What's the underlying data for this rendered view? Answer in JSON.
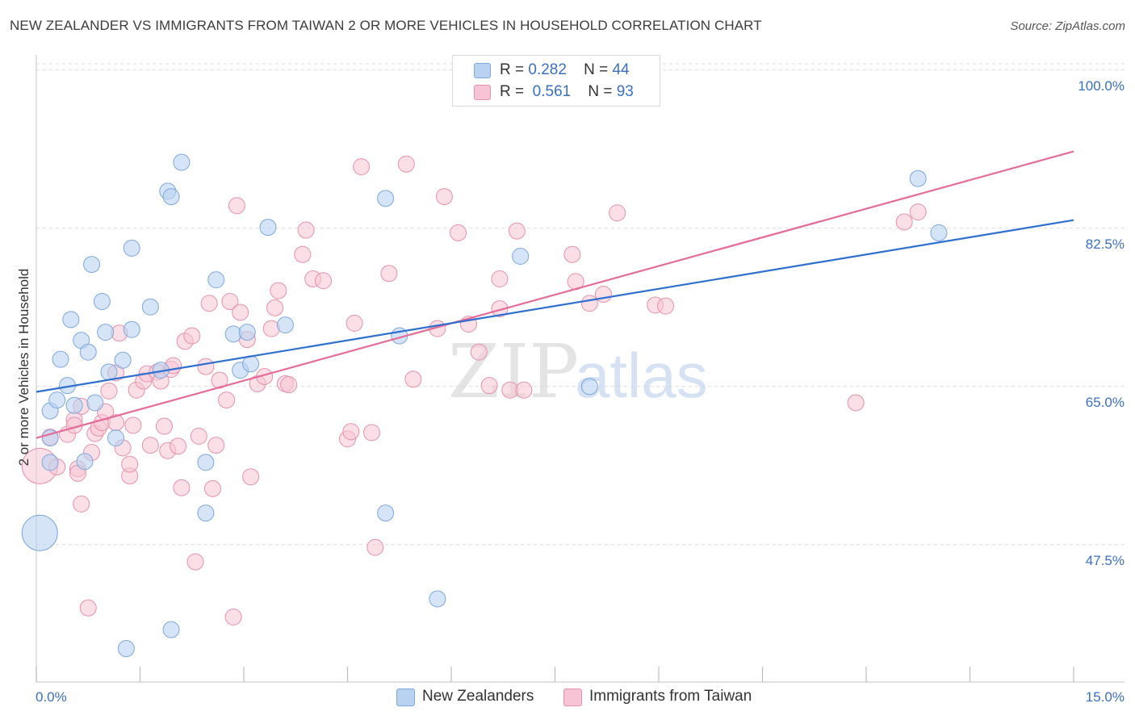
{
  "title": "NEW ZEALANDER VS IMMIGRANTS FROM TAIWAN 2 OR MORE VEHICLES IN HOUSEHOLD CORRELATION CHART",
  "source": "Source: ZipAtlas.com",
  "watermark": {
    "zip": "ZIP",
    "atlas": "atlas"
  },
  "legend": {
    "r_label": "R =",
    "n_label": "N =",
    "series": [
      {
        "r": "0.282",
        "n": "44"
      },
      {
        "r": "0.561",
        "n": "93"
      }
    ]
  },
  "colors": {
    "blue_fill": "#b9d2f0",
    "blue_stroke": "#7ea7dd",
    "blue_line": "#2f6fcf",
    "pink_fill": "#f6c4d4",
    "pink_stroke": "#e890ad",
    "pink_line": "#e56b98",
    "axis_text": "#3a6fc4"
  },
  "chart_data": {
    "type": "scatter",
    "title": "NEW ZEALANDER VS IMMIGRANTS FROM TAIWAN 2 OR MORE VEHICLES IN HOUSEHOLD CORRELATION CHART",
    "xlabel": "",
    "ylabel": "2 or more Vehicles in Household",
    "xlim": [
      0,
      15
    ],
    "ylim": [
      32.3,
      101.5
    ],
    "x_tick_labels": [
      "0.0%",
      "15.0%"
    ],
    "y_ticks": [
      47.5,
      65.0,
      82.5,
      100.0
    ],
    "y_tick_labels": [
      "47.5%",
      "65.0%",
      "82.5%",
      "100.0%"
    ],
    "legend_position": "top-center",
    "series": [
      {
        "name": "New Zealanders",
        "trend": {
          "x": [
            0,
            15
          ],
          "y": [
            64.4,
            83.4
          ]
        },
        "points": [
          [
            0.05,
            48.8,
            22
          ],
          [
            0.2,
            56.6,
            10
          ],
          [
            0.2,
            59.3,
            10
          ],
          [
            0.2,
            62.3,
            10
          ],
          [
            0.3,
            63.5,
            10
          ],
          [
            0.35,
            68.0,
            10
          ],
          [
            0.45,
            65.1,
            10
          ],
          [
            0.5,
            72.4,
            10
          ],
          [
            0.55,
            62.9,
            10
          ],
          [
            0.65,
            70.1,
            10
          ],
          [
            0.7,
            56.7,
            10
          ],
          [
            0.75,
            68.8,
            10
          ],
          [
            0.8,
            78.5,
            10
          ],
          [
            0.85,
            63.2,
            10
          ],
          [
            0.95,
            74.4,
            10
          ],
          [
            1.0,
            71.0,
            10
          ],
          [
            1.05,
            66.6,
            10
          ],
          [
            1.15,
            59.3,
            10
          ],
          [
            1.25,
            67.9,
            10
          ],
          [
            1.38,
            71.3,
            10
          ],
          [
            1.38,
            80.3,
            10
          ],
          [
            1.65,
            73.8,
            10
          ],
          [
            1.8,
            66.8,
            10
          ],
          [
            1.9,
            86.6,
            10
          ],
          [
            1.95,
            86.0,
            10
          ],
          [
            1.95,
            38.1,
            10
          ],
          [
            2.1,
            89.8,
            10
          ],
          [
            2.45,
            56.6,
            10
          ],
          [
            2.45,
            51.0,
            10
          ],
          [
            2.6,
            76.8,
            10
          ],
          [
            2.85,
            70.8,
            10
          ],
          [
            2.95,
            66.8,
            10
          ],
          [
            3.1,
            67.5,
            10
          ],
          [
            3.05,
            71.0,
            10
          ],
          [
            3.35,
            82.6,
            10
          ],
          [
            3.6,
            71.8,
            10
          ],
          [
            1.3,
            36.0,
            10
          ],
          [
            5.05,
            85.8,
            10
          ],
          [
            5.05,
            51.0,
            10
          ],
          [
            5.25,
            70.6,
            10
          ],
          [
            5.8,
            41.5,
            10
          ],
          [
            7.0,
            79.4,
            10
          ],
          [
            8.0,
            65.0,
            10
          ],
          [
            12.75,
            88.0,
            10
          ],
          [
            13.05,
            82.0,
            10
          ]
        ]
      },
      {
        "name": "Immigrants from Taiwan",
        "trend": {
          "x": [
            0,
            15
          ],
          "y": [
            59.3,
            91.0
          ]
        },
        "points": [
          [
            0.05,
            56.2,
            22
          ],
          [
            0.3,
            56.1,
            10
          ],
          [
            0.2,
            59.4,
            10
          ],
          [
            0.45,
            59.7,
            10
          ],
          [
            0.55,
            61.3,
            10
          ],
          [
            0.55,
            60.7,
            10
          ],
          [
            0.6,
            55.9,
            10
          ],
          [
            0.6,
            55.4,
            10
          ],
          [
            0.65,
            62.8,
            10
          ],
          [
            0.65,
            52.0,
            10
          ],
          [
            0.75,
            40.5,
            10
          ],
          [
            0.8,
            57.7,
            10
          ],
          [
            0.85,
            59.8,
            10
          ],
          [
            0.9,
            60.4,
            10
          ],
          [
            0.95,
            61.0,
            10
          ],
          [
            1.0,
            62.2,
            10
          ],
          [
            1.05,
            64.5,
            10
          ],
          [
            1.15,
            61.0,
            10
          ],
          [
            1.15,
            66.5,
            10
          ],
          [
            1.2,
            70.9,
            10
          ],
          [
            1.25,
            58.2,
            10
          ],
          [
            1.35,
            55.1,
            10
          ],
          [
            1.35,
            56.4,
            10
          ],
          [
            1.4,
            60.7,
            10
          ],
          [
            1.45,
            64.6,
            10
          ],
          [
            1.55,
            65.6,
            10
          ],
          [
            1.6,
            66.4,
            10
          ],
          [
            1.65,
            58.5,
            10
          ],
          [
            1.75,
            66.6,
            10
          ],
          [
            1.8,
            65.6,
            10
          ],
          [
            1.85,
            60.6,
            10
          ],
          [
            1.9,
            57.9,
            10
          ],
          [
            1.95,
            66.9,
            10
          ],
          [
            1.98,
            67.3,
            10
          ],
          [
            2.05,
            58.4,
            10
          ],
          [
            2.1,
            53.8,
            10
          ],
          [
            2.15,
            70.0,
            10
          ],
          [
            2.25,
            70.6,
            10
          ],
          [
            2.3,
            45.6,
            10
          ],
          [
            2.35,
            59.5,
            10
          ],
          [
            2.45,
            67.2,
            10
          ],
          [
            2.5,
            74.2,
            10
          ],
          [
            2.55,
            53.7,
            10
          ],
          [
            2.6,
            58.5,
            10
          ],
          [
            2.65,
            65.7,
            10
          ],
          [
            2.75,
            63.5,
            10
          ],
          [
            2.8,
            74.4,
            10
          ],
          [
            2.85,
            39.5,
            10
          ],
          [
            2.9,
            85.0,
            10
          ],
          [
            2.95,
            73.2,
            10
          ],
          [
            3.05,
            70.2,
            10
          ],
          [
            3.1,
            55.0,
            10
          ],
          [
            3.2,
            65.3,
            10
          ],
          [
            3.3,
            66.1,
            10
          ],
          [
            3.4,
            71.4,
            10
          ],
          [
            3.45,
            73.7,
            10
          ],
          [
            3.5,
            75.6,
            10
          ],
          [
            3.6,
            65.3,
            10
          ],
          [
            3.65,
            65.2,
            10
          ],
          [
            3.85,
            79.6,
            10
          ],
          [
            3.9,
            82.3,
            10
          ],
          [
            4.0,
            76.9,
            10
          ],
          [
            4.15,
            76.7,
            10
          ],
          [
            4.5,
            59.2,
            10
          ],
          [
            4.55,
            60.0,
            10
          ],
          [
            4.6,
            72.0,
            10
          ],
          [
            4.7,
            89.3,
            10
          ],
          [
            4.85,
            59.9,
            10
          ],
          [
            4.9,
            47.2,
            10
          ],
          [
            5.1,
            77.5,
            10
          ],
          [
            5.35,
            89.6,
            10
          ],
          [
            5.45,
            65.8,
            10
          ],
          [
            5.8,
            71.4,
            10
          ],
          [
            5.9,
            86.0,
            10
          ],
          [
            6.1,
            82.0,
            10
          ],
          [
            6.25,
            71.9,
            10
          ],
          [
            6.4,
            68.8,
            10
          ],
          [
            6.55,
            65.1,
            10
          ],
          [
            6.85,
            64.6,
            10
          ],
          [
            6.7,
            73.6,
            10
          ],
          [
            6.7,
            76.9,
            10
          ],
          [
            6.95,
            82.2,
            10
          ],
          [
            7.05,
            64.6,
            10
          ],
          [
            7.75,
            79.6,
            10
          ],
          [
            7.8,
            76.6,
            10
          ],
          [
            8.0,
            74.2,
            10
          ],
          [
            8.2,
            75.2,
            10
          ],
          [
            8.4,
            84.2,
            10
          ],
          [
            8.95,
            74.0,
            10
          ],
          [
            9.1,
            73.9,
            10
          ],
          [
            11.85,
            63.2,
            10
          ],
          [
            12.55,
            83.2,
            10
          ],
          [
            12.75,
            84.3,
            10
          ]
        ]
      }
    ]
  },
  "bottom_legend": [
    "New Zealanders",
    "Immigrants from Taiwan"
  ],
  "y_axis_label": "2 or more Vehicles in Household"
}
